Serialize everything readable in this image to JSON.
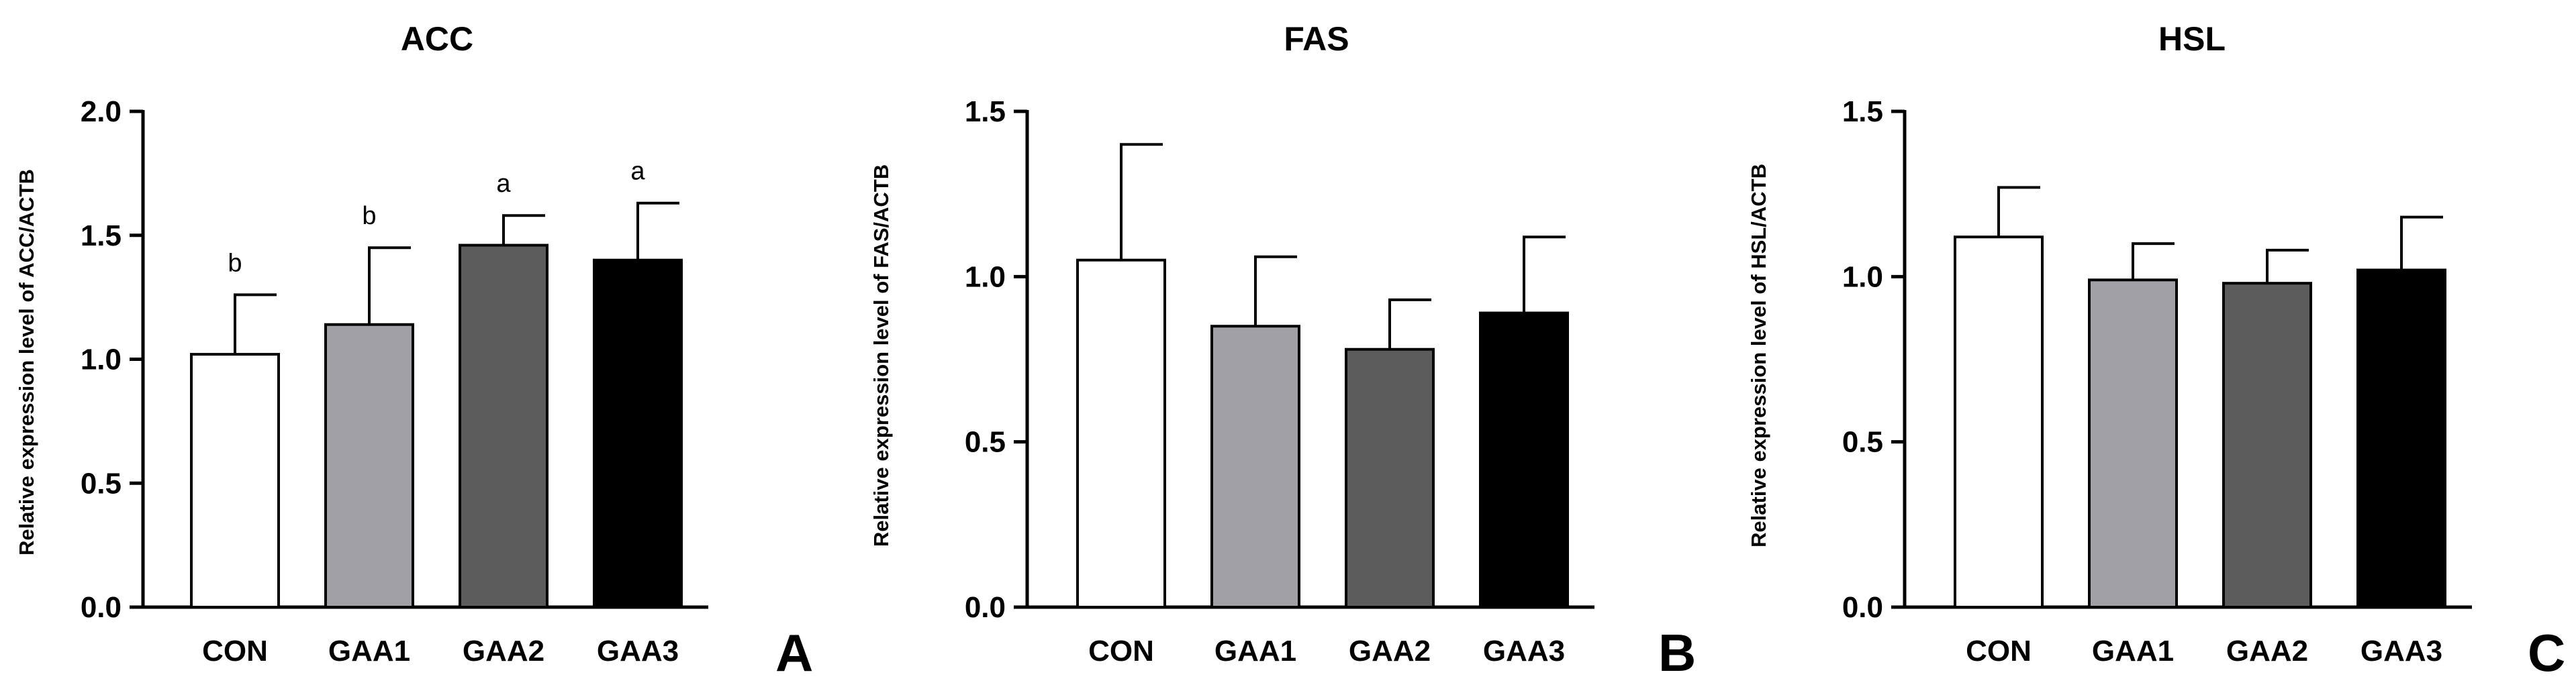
{
  "chart_data": [
    {
      "type": "bar",
      "panel": "A",
      "title": "ACC",
      "ylabel": "Relative expression level of  ACC/ACTB",
      "categories": [
        "CON",
        "GAA1",
        "GAA2",
        "GAA3"
      ],
      "values": [
        1.02,
        1.14,
        1.46,
        1.4
      ],
      "errors": [
        0.24,
        0.31,
        0.12,
        0.23
      ],
      "significance": [
        "b",
        "b",
        "a",
        "a"
      ],
      "colors": [
        "#ffffff",
        "#a0a0a6",
        "#5c5c5c",
        "#000000"
      ],
      "ylim": [
        0,
        2.0
      ],
      "yticks": [
        "0.0",
        "0.5",
        "1.0",
        "1.5",
        "2.0"
      ]
    },
    {
      "type": "bar",
      "panel": "B",
      "title": "FAS",
      "ylabel": "Relative expression level of  FAS/ACTB",
      "categories": [
        "CON",
        "GAA1",
        "GAA2",
        "GAA3"
      ],
      "values": [
        1.05,
        0.85,
        0.78,
        0.89
      ],
      "errors": [
        0.35,
        0.21,
        0.15,
        0.23
      ],
      "significance": [],
      "colors": [
        "#ffffff",
        "#a0a0a6",
        "#5c5c5c",
        "#000000"
      ],
      "ylim": [
        0,
        1.5
      ],
      "yticks": [
        "0.0",
        "0.5",
        "1.0",
        "1.5"
      ]
    },
    {
      "type": "bar",
      "panel": "C",
      "title": "HSL",
      "ylabel": "Relative expression level of  HSL/ACTB",
      "categories": [
        "CON",
        "GAA1",
        "GAA2",
        "GAA3"
      ],
      "values": [
        1.12,
        0.99,
        0.98,
        1.02
      ],
      "errors": [
        0.15,
        0.11,
        0.1,
        0.16
      ],
      "significance": [],
      "colors": [
        "#ffffff",
        "#a0a0a6",
        "#5c5c5c",
        "#000000"
      ],
      "ylim": [
        0,
        1.5
      ],
      "yticks": [
        "0.0",
        "0.5",
        "1.0",
        "1.5"
      ]
    }
  ]
}
